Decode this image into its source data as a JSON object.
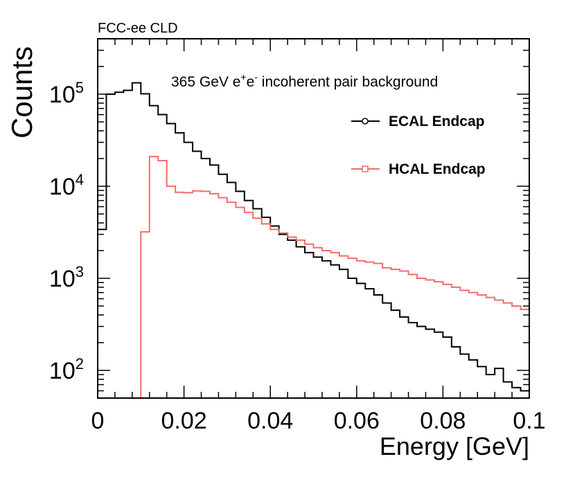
{
  "chart_data": {
    "type": "line",
    "step": true,
    "corner_label": "FCC-ee CLD",
    "title": "365 GeV e+e- incoherent pair background",
    "title_parts": {
      "pre": "365 GeV e",
      "sup1": "+",
      "mid": "e",
      "sup2": "-",
      "post": " incoherent pair background"
    },
    "xlabel": "Energy [GeV]",
    "ylabel": "Counts",
    "xlim": [
      0,
      0.1
    ],
    "ylim": [
      50,
      400000
    ],
    "yscale": "log",
    "x_ticks": [
      {
        "value": 0,
        "label": "0"
      },
      {
        "value": 0.02,
        "label": "0.02"
      },
      {
        "value": 0.04,
        "label": "0.04"
      },
      {
        "value": 0.06,
        "label": "0.06"
      },
      {
        "value": 0.08,
        "label": "0.08"
      },
      {
        "value": 0.1,
        "label": "0.1"
      }
    ],
    "y_ticks": [
      {
        "value": 100,
        "base": "10",
        "exp": "2"
      },
      {
        "value": 1000,
        "base": "10",
        "exp": "3"
      },
      {
        "value": 10000,
        "base": "10",
        "exp": "4"
      },
      {
        "value": 100000,
        "base": "10",
        "exp": "5"
      }
    ],
    "legend_position": "top-right",
    "bin_width": 0.002,
    "series": [
      {
        "name": "ECAL Endcap",
        "color": "#000000",
        "marker": "circle",
        "values": [
          3400,
          100000,
          105000,
          110000,
          133000,
          101000,
          75000,
          60000,
          48000,
          38000,
          30000,
          24000,
          20000,
          17000,
          13500,
          11000,
          8800,
          7000,
          5700,
          4600,
          3700,
          3000,
          2600,
          2200,
          1900,
          1700,
          1550,
          1400,
          1250,
          1000,
          880,
          770,
          660,
          540,
          450,
          380,
          330,
          300,
          280,
          260,
          230,
          180,
          150,
          130,
          110,
          90,
          105,
          75,
          65,
          60
        ]
      },
      {
        "name": "HCAL Endcap",
        "color": "#f56a6a",
        "marker": "square",
        "values": [
          50,
          50,
          50,
          50,
          50,
          3200,
          21000,
          19000,
          10000,
          8600,
          8500,
          8900,
          8800,
          8300,
          7500,
          6700,
          5900,
          5200,
          4500,
          3900,
          3400,
          3100,
          2800,
          2600,
          2350,
          2150,
          2000,
          1900,
          1750,
          1650,
          1550,
          1500,
          1450,
          1300,
          1250,
          1200,
          1100,
          1000,
          960,
          920,
          860,
          800,
          740,
          700,
          660,
          620,
          580,
          540,
          500,
          460
        ]
      }
    ]
  }
}
